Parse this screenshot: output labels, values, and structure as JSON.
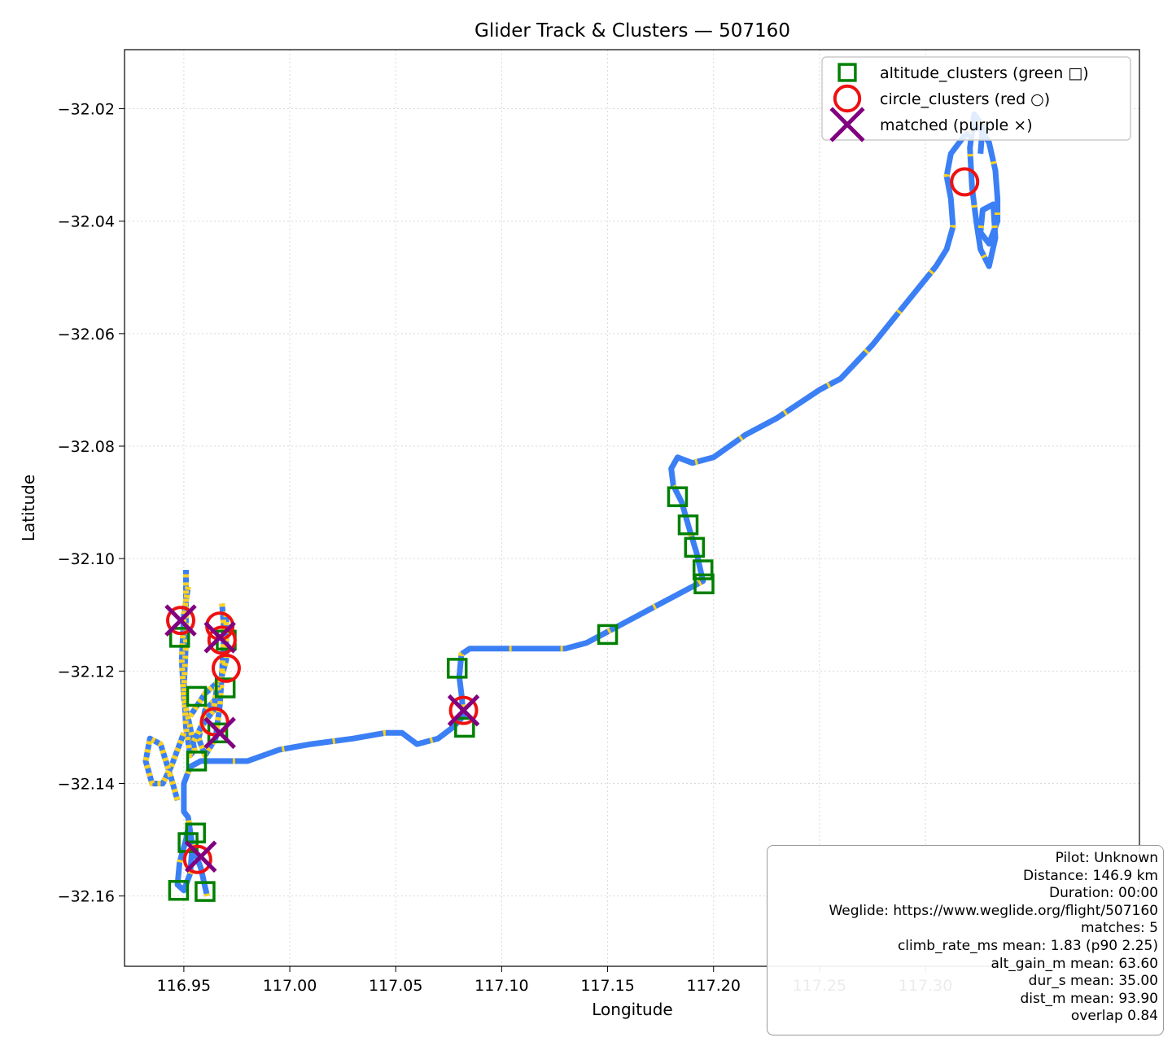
{
  "chart_data": {
    "type": "scatter",
    "title": "Glider Track & Clusters — 507160",
    "xlabel": "Longitude",
    "ylabel": "Latitude",
    "xlim": [
      116.922,
      117.401
    ],
    "ylim": [
      -32.1725,
      -32.0095
    ],
    "xticks": [
      116.95,
      117.0,
      117.05,
      117.1,
      117.15,
      117.2,
      117.25,
      117.3
    ],
    "xtick_labels": [
      "116.95",
      "117.00",
      "117.05",
      "117.10",
      "117.15",
      "117.20",
      "117.25",
      "117.30"
    ],
    "yticks": [
      -32.02,
      -32.04,
      -32.06,
      -32.08,
      -32.1,
      -32.12,
      -32.14,
      -32.16
    ],
    "ytick_labels": [
      "−32.02",
      "−32.04",
      "−32.06",
      "−32.08",
      "−32.10",
      "−32.12",
      "−32.14",
      "−32.16"
    ],
    "grid": true,
    "legend_position": "top-right",
    "track": {
      "color_cruise": "#3b7ff5",
      "color_climb": "#ffd21f",
      "points": [
        [
          116.961,
          -32.16
        ],
        [
          116.958,
          -32.155
        ],
        [
          116.955,
          -32.152
        ],
        [
          116.952,
          -32.148
        ],
        [
          116.951,
          -32.15
        ],
        [
          116.948,
          -32.154
        ],
        [
          116.947,
          -32.158
        ],
        [
          116.95,
          -32.159
        ],
        [
          116.953,
          -32.156
        ],
        [
          116.954,
          -32.151
        ],
        [
          116.952,
          -32.146
        ],
        [
          116.95,
          -32.145
        ],
        [
          116.95,
          -32.14
        ],
        [
          116.953,
          -32.137
        ],
        [
          116.958,
          -32.136
        ],
        [
          116.966,
          -32.136
        ],
        [
          116.98,
          -32.136
        ],
        [
          116.995,
          -32.134
        ],
        [
          117.01,
          -32.133
        ],
        [
          117.03,
          -32.132
        ],
        [
          117.045,
          -32.131
        ],
        [
          117.053,
          -32.131
        ],
        [
          117.06,
          -32.133
        ],
        [
          117.07,
          -32.132
        ],
        [
          117.077,
          -32.13
        ],
        [
          117.082,
          -32.128
        ],
        [
          117.081,
          -32.124
        ],
        [
          117.08,
          -32.121
        ],
        [
          117.081,
          -32.117
        ],
        [
          117.085,
          -32.116
        ],
        [
          117.095,
          -32.116
        ],
        [
          117.11,
          -32.116
        ],
        [
          117.13,
          -32.116
        ],
        [
          117.14,
          -32.115
        ],
        [
          117.15,
          -32.113
        ],
        [
          117.16,
          -32.111
        ],
        [
          117.175,
          -32.108
        ],
        [
          117.19,
          -32.105
        ],
        [
          117.195,
          -32.104
        ],
        [
          117.192,
          -32.099
        ],
        [
          117.188,
          -32.094
        ],
        [
          117.185,
          -32.09
        ],
        [
          117.181,
          -32.087
        ],
        [
          117.18,
          -32.084
        ],
        [
          117.183,
          -32.082
        ],
        [
          117.19,
          -32.083
        ],
        [
          117.2,
          -32.082
        ],
        [
          117.215,
          -32.078
        ],
        [
          117.23,
          -32.075
        ],
        [
          117.25,
          -32.07
        ],
        [
          117.26,
          -32.068
        ],
        [
          117.275,
          -32.062
        ],
        [
          117.29,
          -32.055
        ],
        [
          117.305,
          -32.048
        ],
        [
          117.31,
          -32.045
        ],
        [
          117.313,
          -32.041
        ],
        [
          117.312,
          -32.036
        ],
        [
          117.31,
          -32.032
        ],
        [
          117.312,
          -32.028
        ],
        [
          117.318,
          -32.025
        ],
        [
          117.325,
          -32.023
        ],
        [
          117.33,
          -32.026
        ],
        [
          117.333,
          -32.031
        ],
        [
          117.334,
          -32.036
        ],
        [
          117.334,
          -32.04
        ],
        [
          117.33,
          -32.044
        ],
        [
          117.326,
          -32.042
        ],
        [
          117.327,
          -32.038
        ],
        [
          117.332,
          -32.037
        ],
        [
          117.333,
          -32.043
        ],
        [
          117.33,
          -32.048
        ],
        [
          117.326,
          -32.045
        ],
        [
          117.324,
          -32.04
        ],
        [
          117.322,
          -32.034
        ],
        [
          117.321,
          -32.027
        ],
        [
          117.323,
          -32.021
        ],
        [
          117.327,
          -32.023
        ],
        [
          117.326,
          -32.028
        ]
      ],
      "cluster_paths": [
        [
          [
            116.952,
            -32.105
          ],
          [
            116.95,
            -32.11
          ],
          [
            116.949,
            -32.118
          ],
          [
            116.95,
            -32.125
          ],
          [
            116.953,
            -32.13
          ],
          [
            116.955,
            -32.134
          ],
          [
            116.953,
            -32.135
          ],
          [
            116.951,
            -32.13
          ],
          [
            116.95,
            -32.123
          ],
          [
            116.951,
            -32.115
          ],
          [
            116.951,
            -32.102
          ]
        ],
        [
          [
            116.968,
            -32.108
          ],
          [
            116.969,
            -32.113
          ],
          [
            116.968,
            -32.12
          ],
          [
            116.967,
            -32.126
          ],
          [
            116.965,
            -32.132
          ],
          [
            116.96,
            -32.135
          ],
          [
            116.957,
            -32.132
          ],
          [
            116.96,
            -32.127
          ],
          [
            116.965,
            -32.125
          ],
          [
            116.97,
            -32.118
          ],
          [
            116.97,
            -32.11
          ]
        ],
        [
          [
            116.95,
            -32.131
          ],
          [
            116.944,
            -32.137
          ],
          [
            116.94,
            -32.14
          ],
          [
            116.935,
            -32.14
          ],
          [
            116.932,
            -32.136
          ],
          [
            116.934,
            -32.132
          ],
          [
            116.939,
            -32.133
          ],
          [
            116.944,
            -32.139
          ],
          [
            116.947,
            -32.143
          ]
        ],
        [
          [
            116.953,
            -32.128
          ],
          [
            116.96,
            -32.124
          ],
          [
            116.966,
            -32.122
          ],
          [
            116.964,
            -32.127
          ],
          [
            116.958,
            -32.13
          ],
          [
            116.954,
            -32.133
          ]
        ]
      ]
    },
    "series": [
      {
        "name": "altitude_clusters (green □)",
        "marker": "square",
        "color": "#008000",
        "points": [
          [
            116.9475,
            -32.159
          ],
          [
            116.96,
            -32.1592
          ],
          [
            116.952,
            -32.1505
          ],
          [
            116.9555,
            -32.1488
          ],
          [
            116.948,
            -32.114
          ],
          [
            116.956,
            -32.1245
          ],
          [
            116.956,
            -32.136
          ],
          [
            116.966,
            -32.131
          ],
          [
            116.9695,
            -32.123
          ],
          [
            116.97,
            -32.1145
          ],
          [
            117.079,
            -32.1195
          ],
          [
            117.0825,
            -32.13
          ],
          [
            117.15,
            -32.1135
          ],
          [
            117.183,
            -32.089
          ],
          [
            117.188,
            -32.094
          ],
          [
            117.191,
            -32.098
          ],
          [
            117.195,
            -32.102
          ],
          [
            117.1955,
            -32.1045
          ]
        ]
      },
      {
        "name": "circle_clusters (red ○)",
        "marker": "circle",
        "color": "#ee1111",
        "points": [
          [
            117.3185,
            -32.033
          ],
          [
            117.082,
            -32.127
          ],
          [
            116.9565,
            -32.1535
          ],
          [
            116.9485,
            -32.111
          ],
          [
            116.967,
            -32.112
          ],
          [
            116.968,
            -32.1145
          ],
          [
            116.97,
            -32.1195
          ],
          [
            116.9645,
            -32.129
          ]
        ]
      },
      {
        "name": "matched (purple ×)",
        "marker": "x",
        "color": "#800080",
        "points": [
          [
            116.9485,
            -32.111
          ],
          [
            116.967,
            -32.114
          ],
          [
            116.967,
            -32.131
          ],
          [
            116.958,
            -32.153
          ],
          [
            117.082,
            -32.127
          ]
        ]
      }
    ],
    "info": [
      "Pilot: Unknown",
      "Distance: 146.9 km",
      "Duration: 00:00",
      "Weglide: https://www.weglide.org/flight/507160",
      "matches: 5",
      "climb_rate_ms mean: 1.83 (p90 2.25)",
      "alt_gain_m mean: 63.60",
      "dur_s mean: 35.00",
      "dist_m mean: 93.90",
      "overlap 0.84"
    ]
  }
}
